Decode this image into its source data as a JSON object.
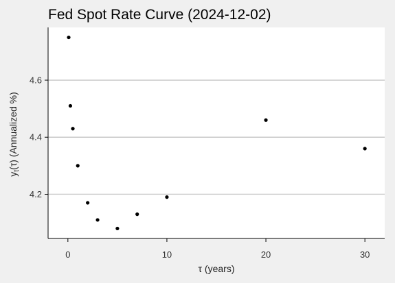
{
  "chart_data": {
    "type": "scatter",
    "title": "Fed Spot Rate Curve (2024-12-02)",
    "xlabel": "τ (years)",
    "ylabel": "y",
    "ylabel_subscript": "t",
    "ylabel_rest": "(τ)  (Annualized %)",
    "xlim": [
      -2,
      32
    ],
    "ylim": [
      4.045,
      4.785
    ],
    "xticks": [
      0,
      10,
      20,
      30
    ],
    "yticks": [
      4.2,
      4.4,
      4.6
    ],
    "ytick_labels": [
      "4.2",
      "4.4",
      "4.6"
    ],
    "grid": "horizontal",
    "points": [
      {
        "x": 0.083,
        "y": 4.75
      },
      {
        "x": 0.25,
        "y": 4.51
      },
      {
        "x": 0.5,
        "y": 4.43
      },
      {
        "x": 1,
        "y": 4.3
      },
      {
        "x": 2,
        "y": 4.17
      },
      {
        "x": 3,
        "y": 4.11
      },
      {
        "x": 5,
        "y": 4.08
      },
      {
        "x": 7,
        "y": 4.13
      },
      {
        "x": 10,
        "y": 4.19
      },
      {
        "x": 20,
        "y": 4.46
      },
      {
        "x": 30,
        "y": 4.36
      }
    ]
  }
}
